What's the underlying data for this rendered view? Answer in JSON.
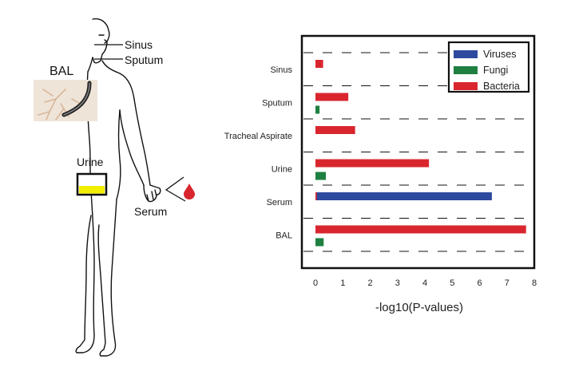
{
  "illustration": {
    "labels": {
      "sinus": "Sinus",
      "sputum": "Sputum",
      "bal": "BAL",
      "urine": "Urine",
      "serum": "Serum"
    },
    "icons": [
      "human-body-icon",
      "bronchoscope-icon",
      "urine-cup-icon",
      "blood-drop-icon"
    ],
    "colors": {
      "urine_fill": "#f2ee00",
      "blood": "#d9262e"
    }
  },
  "chart_data": {
    "type": "bar",
    "orientation": "horizontal",
    "categories": [
      "Sinus",
      "Sputum",
      "Tracheal Aspirate",
      "Urine",
      "Serum",
      "BAL"
    ],
    "series": [
      {
        "name": "Viruses",
        "color": "#2e4a9e",
        "values": [
          null,
          null,
          null,
          null,
          6.45,
          null
        ]
      },
      {
        "name": "Fungi",
        "color": "#1e8040",
        "values": [
          null,
          0.15,
          null,
          0.38,
          null,
          0.3
        ]
      },
      {
        "name": "Bacteria",
        "color": "#d9262e",
        "values": [
          0.28,
          1.2,
          1.45,
          4.15,
          0.05,
          7.7
        ]
      }
    ],
    "xlabel": "-log10(P-values)",
    "ylabel": "",
    "xlim": [
      0,
      8
    ],
    "xticks": [
      0,
      1,
      2,
      3,
      4,
      5,
      6,
      7,
      8
    ],
    "grid": "dashed horizontal",
    "legend_position": "top-right"
  }
}
